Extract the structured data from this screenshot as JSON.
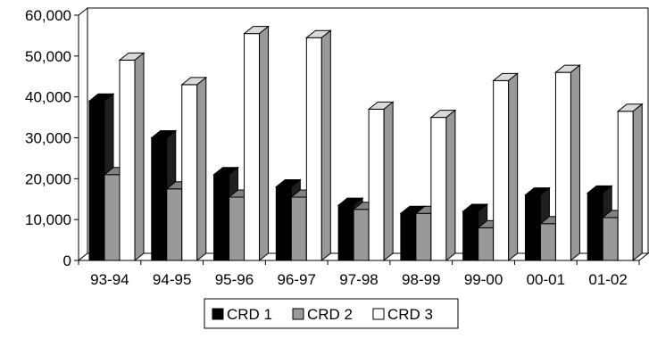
{
  "chart_data": {
    "type": "bar",
    "style": "3d-clustered-column",
    "categories": [
      "93-94",
      "94-95",
      "95-96",
      "96-97",
      "97-98",
      "98-99",
      "99-00",
      "00-01",
      "01-02"
    ],
    "series": [
      {
        "name": "CRD 1",
        "color": "#000000",
        "values": [
          39000,
          30000,
          21000,
          18000,
          13500,
          11500,
          12000,
          16000,
          16500
        ]
      },
      {
        "name": "CRD 2",
        "color": "#999999",
        "values": [
          21000,
          17500,
          15500,
          15500,
          12500,
          11500,
          8000,
          9000,
          10500
        ]
      },
      {
        "name": "CRD 3",
        "color": "#ffffff",
        "values": [
          49000,
          43000,
          55500,
          54500,
          37000,
          35000,
          44000,
          46000,
          36500
        ]
      }
    ],
    "y_ticks": [
      "0",
      "10,000",
      "20,000",
      "30,000",
      "40,000",
      "50,000",
      "60,000"
    ],
    "ylim": [
      0,
      60000
    ],
    "grid": false,
    "legend": "bottom"
  }
}
